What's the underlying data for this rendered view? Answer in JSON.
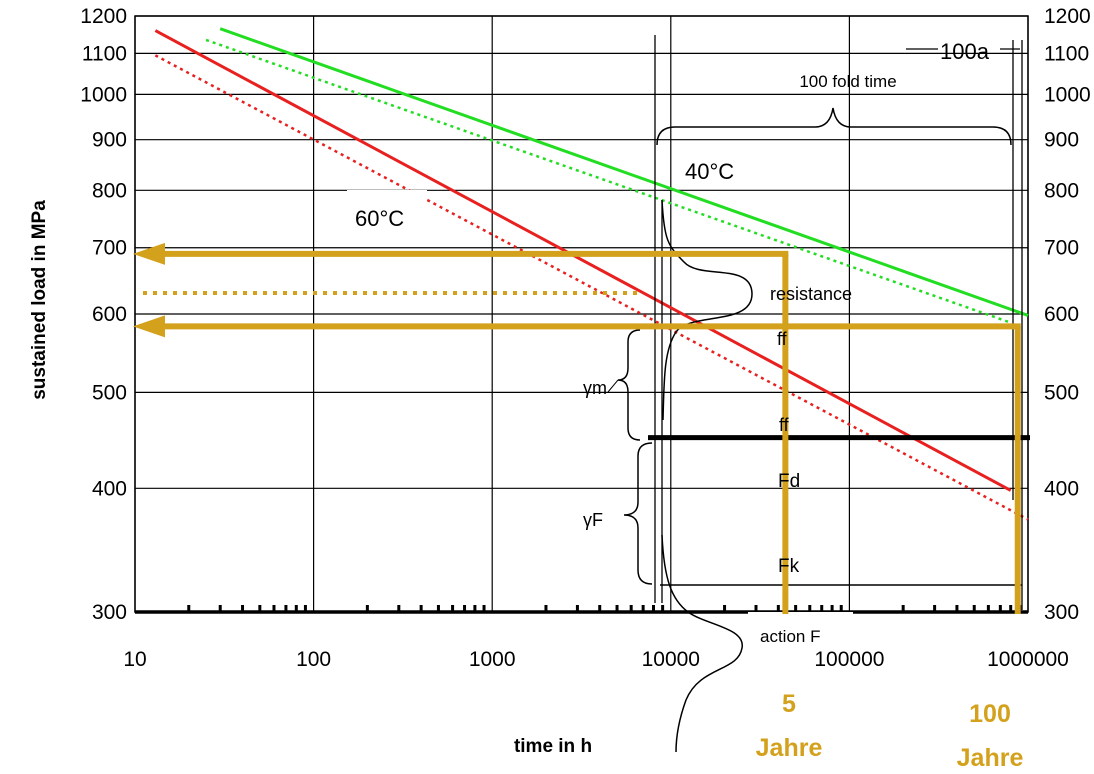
{
  "chart_data": {
    "type": "line",
    "title": "",
    "xlabel": "time in h",
    "ylabel": "sustained load in MPa",
    "x_scale": "log",
    "y_scale": "log",
    "xlim": [
      10,
      1000000
    ],
    "ylim": [
      300,
      1200
    ],
    "x_ticks": [
      10,
      100,
      1000,
      10000,
      100000,
      1000000
    ],
    "x_tick_labels": [
      "10",
      "100",
      "1000",
      "10000",
      "100000",
      "1000000"
    ],
    "y_ticks": [
      300,
      400,
      500,
      600,
      700,
      800,
      900,
      1000,
      1100,
      1200
    ],
    "y_tick_labels": [
      "300",
      "400",
      "500",
      "600",
      "700",
      "800",
      "900",
      "1000",
      "1100",
      "1200"
    ],
    "grid": true,
    "series": [
      {
        "name": "40°C",
        "style": "solid",
        "color": "#22dd22",
        "x": [
          30,
          1000000
        ],
        "y": [
          1165,
          598
        ]
      },
      {
        "name": "",
        "style": "dotted",
        "color": "#22dd22",
        "x": [
          25,
          800000
        ],
        "y": [
          1135,
          588
        ]
      },
      {
        "name": "60°C",
        "style": "solid",
        "color": "#e82020",
        "x": [
          13,
          800000
        ],
        "y": [
          1160,
          398
        ]
      },
      {
        "name": "",
        "style": "dotted",
        "color": "#e82020",
        "x": [
          13,
          1000000
        ],
        "y": [
          1095,
          372
        ]
      }
    ],
    "reference_levels": {
      "resistance_mean": 630,
      "design_level": 450
    },
    "orange_lines": {
      "color": "#d4a11c",
      "five_years": {
        "x": 43800,
        "y": 690
      },
      "hundred_years": {
        "x": 876000,
        "y": 583
      },
      "dotted_y": 630
    },
    "annotations": {
      "hundred_a": "100a",
      "hundred_fold": "100 fold time",
      "label_40c": "40°C",
      "label_60c": "60°C",
      "resistance": "resistance",
      "ff_upper": "ff",
      "ff_lower": "ff",
      "gamma_m": "γm",
      "gamma_f": "γF",
      "fd": "Fd",
      "fk": "Fk",
      "action_f": "action F",
      "five_num": "5",
      "five_unit": "Jahre",
      "hundred_num": "100",
      "hundred_unit": "Jahre"
    }
  }
}
